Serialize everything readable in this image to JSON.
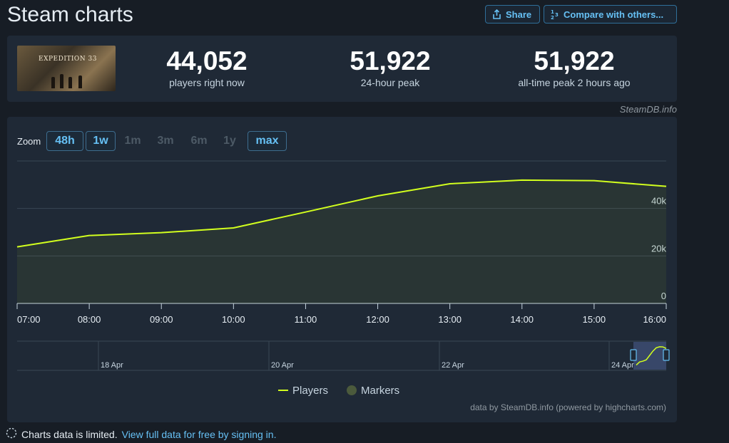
{
  "header": {
    "title": "Steam charts",
    "share_label": "Share",
    "compare_label": "Compare with others..."
  },
  "stats": {
    "now_value": "44,052",
    "now_label": "players right now",
    "peak24_value": "51,922",
    "peak24_label": "24-hour peak",
    "alltime_value": "51,922",
    "alltime_label": "all-time peak 2 hours ago"
  },
  "game_logo_text": "EXPEDITION 33",
  "credit": "SteamDB.info",
  "zoom": {
    "label": "Zoom",
    "options": [
      {
        "label": "48h",
        "active": true
      },
      {
        "label": "1w",
        "active": true
      },
      {
        "label": "1m",
        "active": false
      },
      {
        "label": "3m",
        "active": false
      },
      {
        "label": "6m",
        "active": false
      },
      {
        "label": "1y",
        "active": false
      },
      {
        "label": "max",
        "active": true
      }
    ]
  },
  "chart_data": {
    "type": "area",
    "x": [
      "07:00",
      "08:00",
      "09:00",
      "10:00",
      "11:00",
      "12:00",
      "13:00",
      "14:00",
      "15:00",
      "16:00"
    ],
    "series": [
      {
        "name": "Players",
        "color": "#d2ff1e",
        "values": [
          23800,
          28600,
          29800,
          31800,
          38500,
          45300,
          50400,
          51922,
          51700,
          49300
        ]
      }
    ],
    "ylim": [
      0,
      60000
    ],
    "yticks": [
      "0",
      "20k",
      "40k"
    ],
    "ytick_values": [
      0,
      20000,
      40000
    ],
    "grid": true,
    "navigator": {
      "labels": [
        "18 Apr",
        "20 Apr",
        "22 Apr",
        "24 Apr"
      ]
    },
    "legend": {
      "position": "bottom-center",
      "items": [
        {
          "name": "Players",
          "color": "#d2ff1e"
        },
        {
          "name": "Markers",
          "color": "#4b5a3c"
        }
      ]
    },
    "footnote": "data by SteamDB.info (powered by highcharts.com)"
  },
  "footer": {
    "limited_text": "Charts data is limited.",
    "link_text": "View full data for free by signing in."
  }
}
